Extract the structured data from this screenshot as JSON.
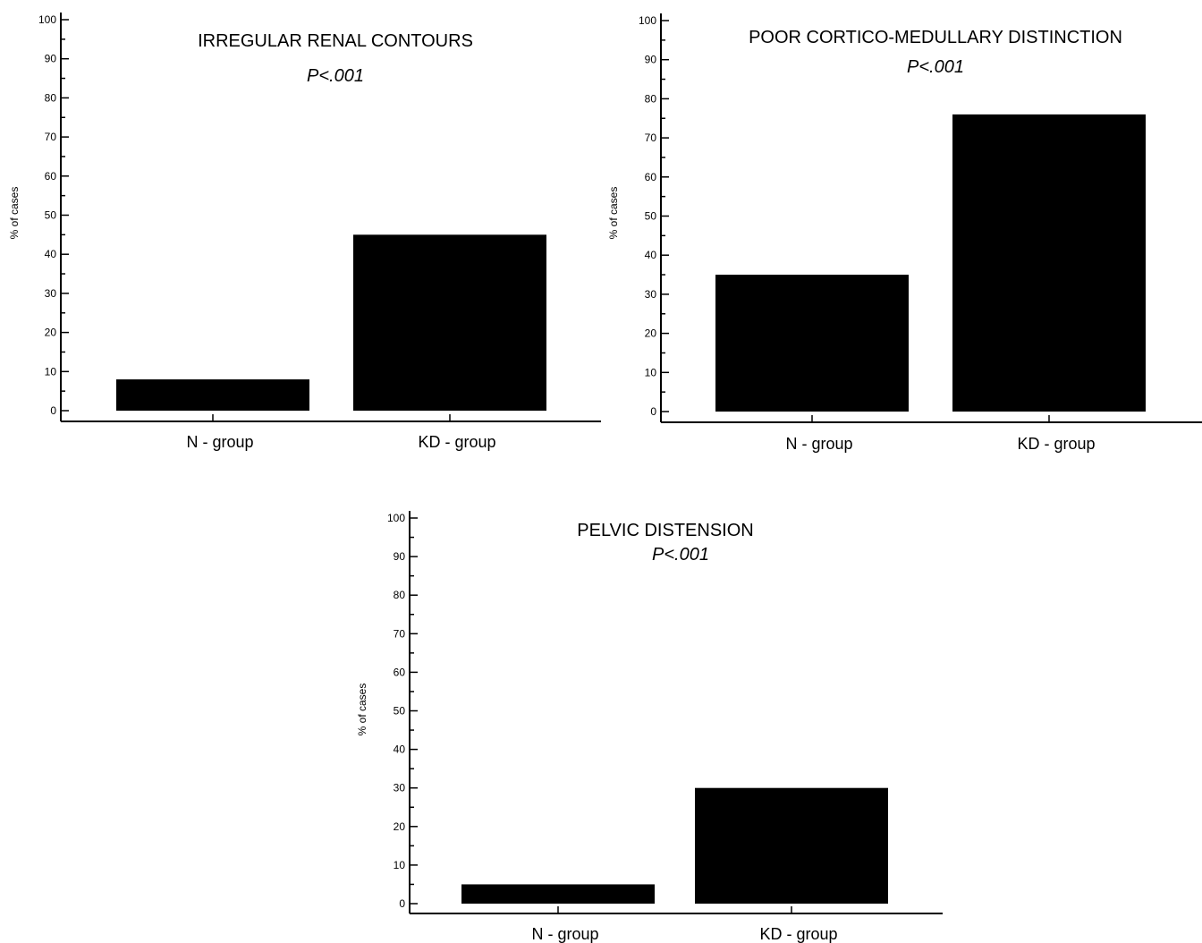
{
  "chart_data": [
    {
      "type": "bar",
      "title": "IRREGULAR RENAL CONTOURS",
      "subtitle": "P<.001",
      "ylabel": "% of cases",
      "xlabel": "",
      "categories": [
        "N - group",
        "KD - group"
      ],
      "values": [
        8,
        45
      ],
      "ylim": [
        0,
        100
      ],
      "yticks": [
        0,
        10,
        20,
        30,
        40,
        50,
        60,
        70,
        80,
        90,
        100
      ],
      "grid": false,
      "bar_color": "#000000"
    },
    {
      "type": "bar",
      "title": "POOR CORTICO-MEDULLARY DISTINCTION",
      "subtitle": "P<.001",
      "ylabel": "% of cases",
      "xlabel": "",
      "categories": [
        "N - group",
        "KD - group"
      ],
      "values": [
        35,
        76
      ],
      "ylim": [
        0,
        100
      ],
      "yticks": [
        0,
        10,
        20,
        30,
        40,
        50,
        60,
        70,
        80,
        90,
        100
      ],
      "grid": false,
      "bar_color": "#000000"
    },
    {
      "type": "bar",
      "title": "PELVIC DISTENSION",
      "subtitle": "P<.001",
      "ylabel": "% of cases",
      "xlabel": "",
      "categories": [
        "N - group",
        "KD - group"
      ],
      "values": [
        5,
        30
      ],
      "ylim": [
        0,
        100
      ],
      "yticks": [
        0,
        10,
        20,
        30,
        40,
        50,
        60,
        70,
        80,
        90,
        100
      ],
      "grid": false,
      "bar_color": "#000000"
    }
  ]
}
